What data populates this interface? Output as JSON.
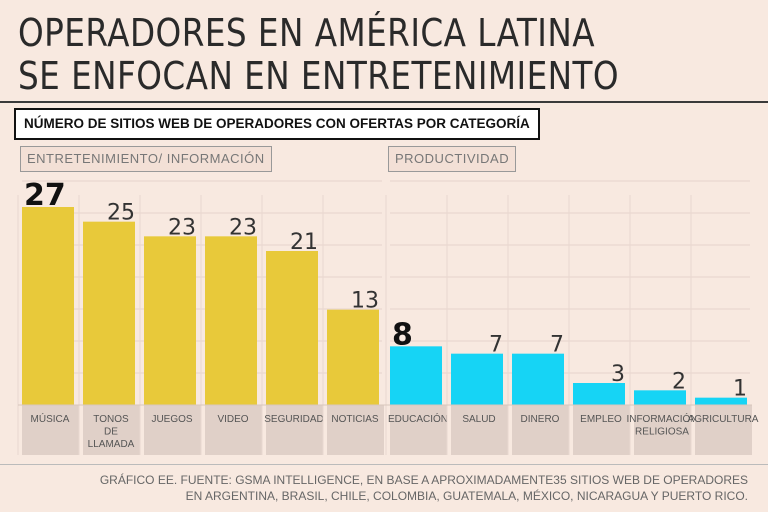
{
  "title_lines": [
    "OPERADORES EN AMÉRICA LATINA",
    "SE ENFOCAN EN ENTRETENIMIENTO"
  ],
  "subtitle": "NÚMERO DE SITIOS WEB DE OPERADORES CON OFERTAS POR CATEGORÍA",
  "groups": [
    "ENTRETENIMIENTO/ INFORMACIÓN",
    "PRODUCTIVIDAD"
  ],
  "source_lines": [
    "GRÁFICO EE. FUENTE: GSMA INTELLIGENCE, EN BASE A APROXIMADAMENTE35 SITIOS WEB DE OPERADORES",
    "EN ARGENTINA, BRASIL, CHILE, COLOMBIA, GUATEMALA, MÉXICO, NICARAGUA Y PUERTO RICO."
  ],
  "colors": {
    "entertainment": "#e8c93a",
    "productivity": "#16d4f5",
    "background": "#f8e9e0",
    "label_band": "#e0d0c8"
  },
  "chart_data": {
    "type": "bar",
    "categories": [
      "MÚSICA",
      "TONOS DE LLAMADA",
      "JUEGOS",
      "VIDEO",
      "SEGURIDAD",
      "NOTICIAS",
      "EDUCACIÓN",
      "SALUD",
      "DINERO",
      "EMPLEO",
      "INFORMACIÓN RELIGIOSA",
      "AGRICULTURA"
    ],
    "category_lines": [
      [
        "MÚSICA"
      ],
      [
        "TONOS",
        "DE",
        "LLAMADA"
      ],
      [
        "JUEGOS"
      ],
      [
        "VIDEO"
      ],
      [
        "SEGURIDAD"
      ],
      [
        "NOTICIAS"
      ],
      [
        "EDUCACIÓN"
      ],
      [
        "SALUD"
      ],
      [
        "DINERO"
      ],
      [
        "EMPLEO"
      ],
      [
        "INFORMACIÓN",
        "RELIGIOSA"
      ],
      [
        "AGRICULTURA"
      ]
    ],
    "values": [
      27,
      25,
      23,
      23,
      21,
      13,
      8,
      7,
      7,
      3,
      2,
      1
    ],
    "group_of": [
      0,
      0,
      0,
      0,
      0,
      0,
      1,
      1,
      1,
      1,
      1,
      1
    ],
    "highlight": [
      true,
      false,
      false,
      false,
      false,
      false,
      true,
      false,
      false,
      false,
      false,
      false
    ],
    "ylim": [
      0,
      27
    ],
    "grid": true,
    "xlabel": "",
    "ylabel": ""
  }
}
